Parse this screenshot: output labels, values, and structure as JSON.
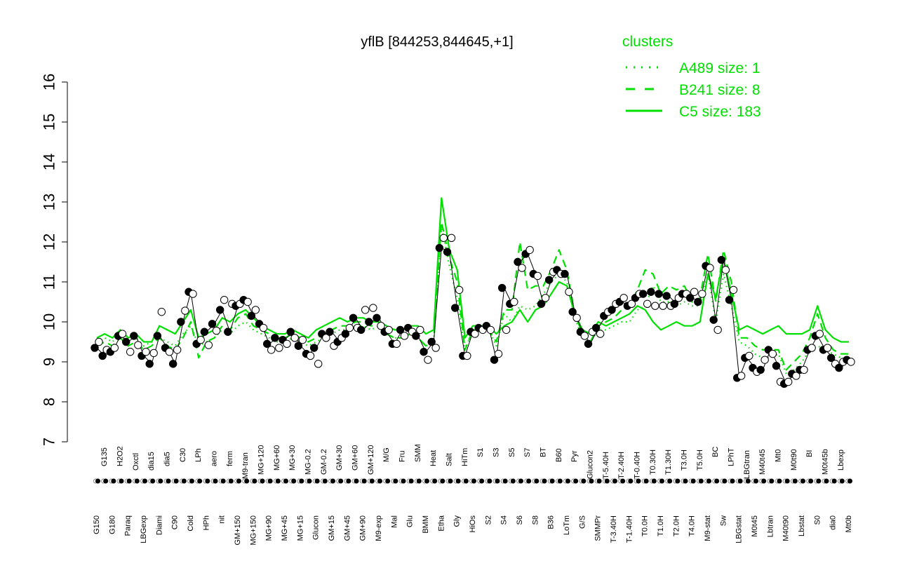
{
  "chart_data": {
    "type": "line",
    "title": "yflB [844253,844645,+1]",
    "xlabel": "",
    "ylabel": "",
    "ylim": [
      7,
      16
    ],
    "yticks": [
      7,
      8,
      9,
      10,
      11,
      12,
      13,
      14,
      15,
      16
    ],
    "x_tick_labels": [
      "G150",
      "G135",
      "G180",
      "H2O2",
      "Paraq",
      "Oxctl",
      "LBGexp",
      "dia15",
      "Diami",
      "dia5",
      "C90",
      "C30",
      "Cold",
      "LPh",
      "HPh",
      "aero",
      "nit",
      "ferm",
      "GM+150",
      "M9-tran",
      "MG+150",
      "MG+120",
      "MG+90",
      "MG+60",
      "MG+45",
      "MG+30",
      "MG+15",
      "MG-0.2",
      "Glucon",
      "GM-0.2",
      "GM+15",
      "GM+30",
      "GM+45",
      "GM+60",
      "GM+90",
      "GM+120",
      "M9-exp",
      "M/G",
      "Mal",
      "Fru",
      "Glu",
      "SMM",
      "BMM",
      "Heat",
      "Etha",
      "Salt",
      "Gly",
      "HiTm",
      "HiOs",
      "S1",
      "S2",
      "S3",
      "S4",
      "S5",
      "S6",
      "S7",
      "S8",
      "BT",
      "B36",
      "B60",
      "LoTm",
      "Pyr",
      "G/S",
      "Glucon2",
      "SMMPr",
      "T-5.40H",
      "T-3.40H",
      "T-2.40H",
      "T-1.40H",
      "T-0.40H",
      "T0.0H",
      "T0.30H",
      "T1.0H",
      "T1.30H",
      "T2.0H",
      "T3.0H",
      "T4.0H",
      "T5.0H",
      "M9-stat",
      "BC",
      "Sw",
      "LPhT",
      "LBGstat",
      "LBGtran",
      "M0t45",
      "M40t45",
      "Lbtran",
      "Mt0",
      "M40t90",
      "M0t90",
      "Lbstat",
      "BI",
      "S0",
      "M0t45b",
      "dia0",
      "Lbexp",
      "Mt0b"
    ],
    "series": [
      {
        "name": "A489 size: 1",
        "style": "dotted",
        "values": [
          9.5,
          9.6,
          9.5,
          9.7,
          9.5,
          9.6,
          9.4,
          9.5,
          9.6,
          9.5,
          9.4,
          9.7,
          9.9,
          9.4,
          9.5,
          9.6,
          9.8,
          9.7,
          9.9,
          10.0,
          9.8,
          9.7,
          9.6,
          9.5,
          9.5,
          9.6,
          9.5,
          9.4,
          9.5,
          9.6,
          9.7,
          9.8,
          9.8,
          9.9,
          9.9,
          9.8,
          9.9,
          9.7,
          9.6,
          9.6,
          9.7,
          9.6,
          9.4,
          9.5,
          12.4,
          11.4,
          10.6,
          9.3,
          9.8,
          9.8,
          9.8,
          9.4,
          10.2,
          10.0,
          10.4,
          10.3,
          10.4,
          10.7,
          11.0,
          11.2,
          11.0,
          10.1,
          9.6,
          9.5,
          9.8,
          9.8,
          9.9,
          10.0,
          10.0,
          10.3,
          10.4,
          10.9,
          10.5,
          10.5,
          10.4,
          10.5,
          10.4,
          10.4,
          11.2,
          10.0,
          11.2,
          10.4,
          9.5,
          9.4,
          9.2,
          9.1,
          9.1,
          9.2,
          8.7,
          8.8,
          9.0,
          9.3,
          9.4,
          9.3,
          9.2,
          9.1,
          9.0
        ]
      },
      {
        "name": "B241 size: 8",
        "style": "dashed",
        "values": [
          9.4,
          9.5,
          9.4,
          9.6,
          9.4,
          9.5,
          9.3,
          9.4,
          9.6,
          9.4,
          9.3,
          9.6,
          10.0,
          9.1,
          9.5,
          9.6,
          9.9,
          9.8,
          10.1,
          10.2,
          9.9,
          9.8,
          9.7,
          9.6,
          9.6,
          9.7,
          9.6,
          9.5,
          9.6,
          9.7,
          9.8,
          9.9,
          9.9,
          10.0,
          10.0,
          9.9,
          9.9,
          9.7,
          9.6,
          9.6,
          9.7,
          9.6,
          9.4,
          9.5,
          12.5,
          11.6,
          11.0,
          9.3,
          9.8,
          9.8,
          9.8,
          9.5,
          10.3,
          10.3,
          12.0,
          10.8,
          10.9,
          10.9,
          11.3,
          11.8,
          11.3,
          10.2,
          9.7,
          9.5,
          9.9,
          10.0,
          10.1,
          10.3,
          10.4,
          10.8,
          11.3,
          11.2,
          10.7,
          10.9,
          10.8,
          10.9,
          10.5,
          10.6,
          11.7,
          10.5,
          11.8,
          11.0,
          9.6,
          9.6,
          9.4,
          9.3,
          9.3,
          9.3,
          8.8,
          9.0,
          9.2,
          9.6,
          10.2,
          9.6,
          9.3,
          9.2,
          9.2
        ]
      },
      {
        "name": "C5 size: 183",
        "style": "solid",
        "values": [
          9.6,
          9.7,
          9.6,
          9.8,
          9.6,
          9.7,
          9.5,
          9.5,
          9.9,
          9.8,
          9.7,
          10.0,
          10.3,
          9.6,
          9.7,
          9.8,
          10.1,
          10.0,
          10.2,
          10.3,
          10.1,
          9.9,
          9.8,
          9.7,
          9.7,
          9.8,
          9.7,
          9.6,
          9.8,
          9.9,
          10.0,
          10.1,
          10.0,
          10.1,
          10.1,
          10.0,
          10.0,
          9.9,
          9.8,
          9.8,
          9.9,
          9.9,
          9.7,
          9.8,
          13.1,
          11.8,
          11.3,
          9.6,
          9.9,
          9.9,
          9.9,
          9.7,
          9.9,
          10.0,
          10.3,
          10.0,
          10.3,
          10.4,
          10.7,
          11.0,
          10.9,
          10.2,
          9.8,
          9.7,
          10.0,
          9.9,
          10.0,
          10.1,
          10.2,
          10.4,
          10.3,
          10.0,
          9.8,
          9.9,
          10.0,
          9.9,
          9.9,
          10.0,
          11.2,
          10.6,
          11.6,
          10.7,
          9.8,
          9.9,
          9.8,
          9.7,
          9.8,
          9.9,
          9.7,
          9.7,
          9.7,
          9.8,
          10.4,
          9.8,
          9.6,
          9.5,
          9.5
        ]
      }
    ],
    "points": [
      [
        9.35,
        9.5
      ],
      [
        9.15,
        9.3
      ],
      [
        9.25,
        9.35
      ],
      [
        9.65,
        9.7
      ],
      [
        9.5,
        9.25
      ],
      [
        9.65,
        9.42
      ],
      [
        9.15,
        9.25
      ],
      [
        8.95,
        9.22
      ],
      [
        9.65,
        10.25
      ],
      [
        9.35,
        9.25
      ],
      [
        8.95,
        9.3
      ],
      [
        10.0,
        10.28
      ],
      [
        10.75,
        10.7
      ],
      [
        9.45,
        9.55
      ],
      [
        9.75,
        9.42
      ],
      [
        9.95,
        9.78
      ],
      [
        10.3,
        10.55
      ],
      [
        9.75,
        10.45
      ],
      [
        10.4,
        10.45
      ],
      [
        10.55,
        10.5
      ],
      [
        10.15,
        10.3
      ],
      [
        9.95,
        9.85
      ],
      [
        9.45,
        9.3
      ],
      [
        9.6,
        9.35
      ],
      [
        9.55,
        9.45
      ],
      [
        9.75,
        9.6
      ],
      [
        9.4,
        9.55
      ],
      [
        9.2,
        9.15
      ],
      [
        9.35,
        8.95
      ],
      [
        9.7,
        9.6
      ],
      [
        9.75,
        9.4
      ],
      [
        9.5,
        9.6
      ],
      [
        9.7,
        9.85
      ],
      [
        10.1,
        9.85
      ],
      [
        9.8,
        10.3
      ],
      [
        10.0,
        10.35
      ],
      [
        10.1,
        9.9
      ],
      [
        9.75,
        9.8
      ],
      [
        9.45,
        9.45
      ],
      [
        9.8,
        9.65
      ],
      [
        9.85,
        9.75
      ],
      [
        9.65,
        9.8
      ],
      [
        9.25,
        9.05
      ],
      [
        9.5,
        9.35
      ],
      [
        11.85,
        12.1
      ],
      [
        11.75,
        12.1
      ],
      [
        10.35,
        10.8
      ],
      [
        9.15,
        9.15
      ],
      [
        9.75,
        9.7
      ],
      [
        9.85,
        9.8
      ],
      [
        9.9,
        9.8
      ],
      [
        9.05,
        9.2
      ],
      [
        10.85,
        9.8
      ],
      [
        10.45,
        10.5
      ],
      [
        11.5,
        11.35
      ],
      [
        11.7,
        11.8
      ],
      [
        11.2,
        11.15
      ],
      [
        10.45,
        10.6
      ],
      [
        11.05,
        11.25
      ],
      [
        11.3,
        11.2
      ],
      [
        11.2,
        10.75
      ],
      [
        10.25,
        10.1
      ],
      [
        9.75,
        9.65
      ],
      [
        9.45,
        9.75
      ],
      [
        9.85,
        9.7
      ],
      [
        10.15,
        10.25
      ],
      [
        10.3,
        10.45
      ],
      [
        10.5,
        10.6
      ],
      [
        10.4,
        10.45
      ],
      [
        10.6,
        10.7
      ],
      [
        10.7,
        10.45
      ],
      [
        10.75,
        10.4
      ],
      [
        10.7,
        10.4
      ],
      [
        10.65,
        10.4
      ],
      [
        10.45,
        10.6
      ],
      [
        10.7,
        10.7
      ],
      [
        10.6,
        10.75
      ],
      [
        10.5,
        10.7
      ],
      [
        11.4,
        11.35
      ],
      [
        10.05,
        9.8
      ],
      [
        11.55,
        11.3
      ],
      [
        10.55,
        10.8
      ],
      [
        8.6,
        8.65
      ],
      [
        9.1,
        9.15
      ],
      [
        8.85,
        8.75
      ],
      [
        8.8,
        9.05
      ],
      [
        9.3,
        9.2
      ],
      [
        8.9,
        8.5
      ],
      [
        8.45,
        8.5
      ],
      [
        8.7,
        8.65
      ],
      [
        8.8,
        8.8
      ],
      [
        9.3,
        9.35
      ],
      [
        9.65,
        9.7
      ],
      [
        9.3,
        9.35
      ],
      [
        9.1,
        8.95
      ],
      [
        8.85,
        9.0
      ],
      [
        9.05,
        9.0
      ]
    ],
    "legend": {
      "title": "clusters",
      "placement": "top-right",
      "entries": [
        {
          "label": "A489 size: 1",
          "style": "dotted"
        },
        {
          "label": "B241 size: 8",
          "style": "dashed"
        },
        {
          "label": "C5 size: 183",
          "style": "solid"
        }
      ]
    },
    "colors": {
      "series": "#00e000",
      "legend_text": "#00e000",
      "points_fill": "#000000",
      "points_open": "#ffffff",
      "axis": "#000000"
    },
    "grid": false
  }
}
